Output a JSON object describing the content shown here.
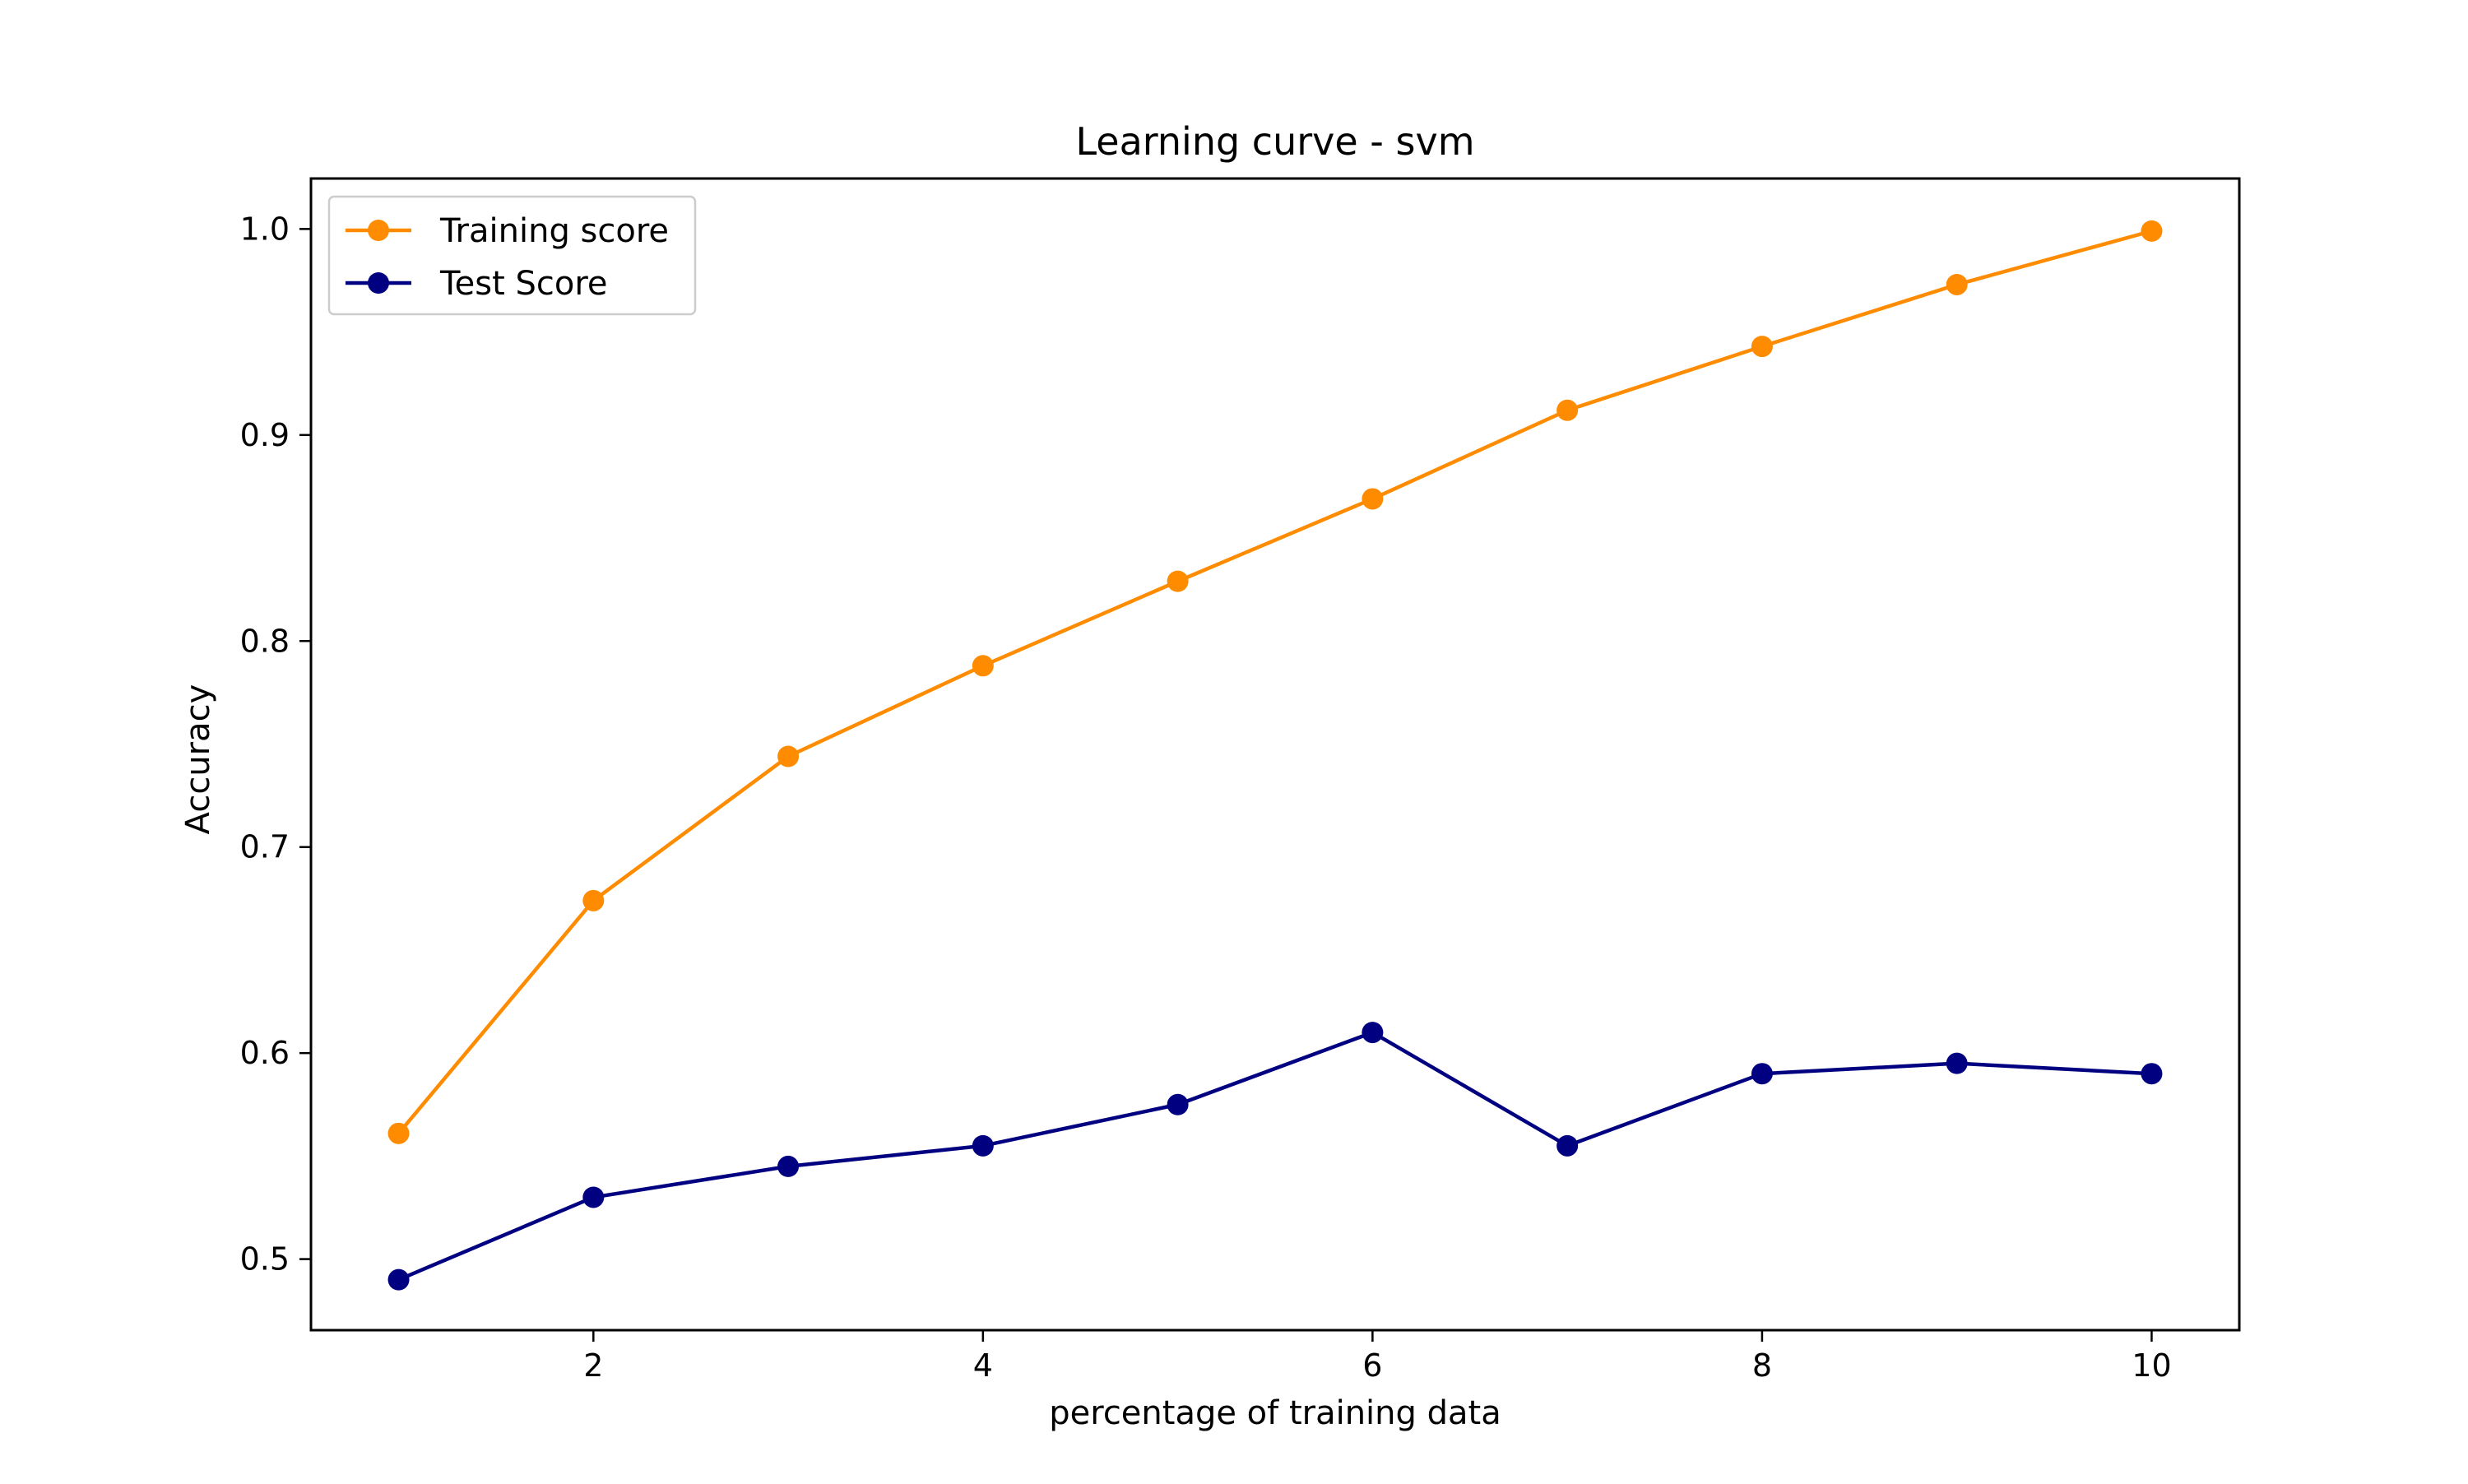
{
  "chart_data": {
    "type": "line",
    "title": "Learning curve - svm",
    "xlabel": "percentage of training data",
    "ylabel": "Accuracy",
    "x": [
      1,
      2,
      3,
      4,
      5,
      6,
      7,
      8,
      9,
      10
    ],
    "xlim": [
      0.55,
      10.45
    ],
    "ylim": [
      0.4655,
      1.0245
    ],
    "xticks": [
      2,
      4,
      6,
      8,
      10
    ],
    "xtick_labels": [
      "2",
      "4",
      "6",
      "8",
      "10"
    ],
    "yticks": [
      0.5,
      0.6,
      0.7,
      0.8,
      0.9,
      1.0
    ],
    "ytick_labels": [
      "0.5",
      "0.6",
      "0.7",
      "0.8",
      "0.9",
      "1.0"
    ],
    "grid": false,
    "legend_position": "top-left",
    "series": [
      {
        "name": "Training score",
        "color": "#ff8c00",
        "marker": "circle",
        "values": [
          0.561,
          0.674,
          0.744,
          0.788,
          0.829,
          0.869,
          0.912,
          0.943,
          0.973,
          0.999
        ]
      },
      {
        "name": "Test Score",
        "color": "#000080",
        "marker": "circle",
        "values": [
          0.49,
          0.53,
          0.545,
          0.555,
          0.575,
          0.61,
          0.555,
          0.59,
          0.595,
          0.59
        ]
      }
    ]
  }
}
